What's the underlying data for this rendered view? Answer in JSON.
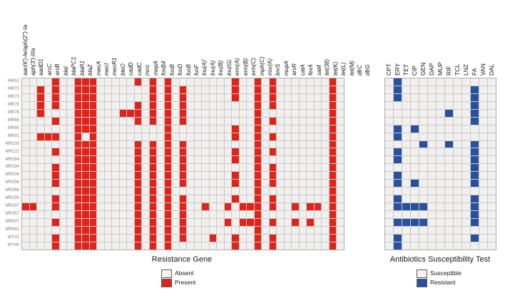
{
  "figure": {
    "gene_axis_title": "Resistance Gene",
    "abx_axis_title": "Antibiotics Susceptibility Test",
    "gene_legend": {
      "absent_label": "Absent",
      "present_label": "Present"
    },
    "abx_legend": {
      "susceptible_label": "Susceptible",
      "resistant_label": "Resistant"
    }
  },
  "chart_data": {
    "type": "heatmap",
    "title": "",
    "legend_position": "bottom",
    "grid": "on",
    "colors": {
      "present": "#e2231a",
      "resistant": "#27519f",
      "absent": "#f1f0ee",
      "gridline": "#c9c9c9"
    },
    "strains": [
      "MR53",
      "MR70",
      "MR73",
      "MR76",
      "MR78",
      "MR88",
      "MR90",
      "MR91",
      "MR109",
      "MR122",
      "MR164",
      "MR194",
      "MR206",
      "MR256",
      "MR286",
      "MR290",
      "MR297",
      "MR357",
      "MR507",
      "MR542",
      "WY22",
      "WY48"
    ],
    "resistance_genes": [
      "aac(6')-Ie/aph(2'')-Ia",
      "aph(3')-IIIa",
      "aadD1",
      "arsC",
      "arsB",
      "blaI",
      "blaPC1",
      "blaR1",
      "blaZ",
      "mecA",
      "mecI",
      "mecR1",
      "bleO",
      "cadD",
      "cadC",
      "mco",
      "mepA",
      "fosB4",
      "fosB",
      "fosD",
      "fusB",
      "fusF",
      "lnu(A)'",
      "lnu(A)",
      "lnu(B)",
      "lnu(G)",
      "erm(A)",
      "erm(B)",
      "erm(C)",
      "mph(C)",
      "msr(A)",
      "lmrS",
      "mupA",
      "arsR",
      "catA",
      "fexA",
      "sat4",
      "tet(38)",
      "tet(K)",
      "tet(L)",
      "tet(M)",
      "dfrC",
      "dfrG"
    ],
    "antibiotics": [
      "CPT",
      "ERY",
      "TET",
      "CIP",
      "GEN",
      "DAP",
      "MUP",
      "RIF",
      "TCL",
      "LNZ",
      "FA",
      "VAN",
      "DAL"
    ],
    "gene_present_cols_1based": [
      [
        5,
        8,
        9,
        10,
        16,
        18,
        20,
        29,
        32,
        34,
        42
      ],
      [
        3,
        5,
        8,
        9,
        10,
        18,
        20,
        22,
        29,
        32,
        34,
        42
      ],
      [
        3,
        5,
        8,
        9,
        10,
        18,
        20,
        22,
        29,
        32,
        34,
        42
      ],
      [
        3,
        5,
        8,
        9,
        10,
        16,
        18,
        20,
        22,
        32,
        34,
        42
      ],
      [
        3,
        8,
        9,
        10,
        14,
        15,
        16,
        18,
        20,
        22,
        32,
        42
      ],
      [
        5,
        8,
        9,
        10,
        16,
        18,
        20,
        22,
        32,
        34,
        42
      ],
      [
        8,
        9,
        10,
        20,
        29,
        32,
        42
      ],
      [
        3,
        4,
        5,
        8,
        10,
        20,
        29,
        32,
        34,
        42
      ],
      [
        8,
        9,
        10,
        16,
        18,
        20,
        22,
        32,
        42
      ],
      [
        5,
        8,
        9,
        10,
        16,
        18,
        20,
        22,
        29,
        32,
        34,
        42
      ],
      [
        8,
        9,
        10,
        16,
        18,
        20,
        22,
        29,
        32,
        42
      ],
      [
        5,
        8,
        9,
        10,
        16,
        18,
        20,
        22,
        32,
        34,
        42
      ],
      [
        5,
        8,
        9,
        10,
        16,
        18,
        20,
        22,
        29,
        32,
        34,
        42
      ],
      [
        5,
        8,
        9,
        10,
        16,
        18,
        20,
        22,
        29,
        32,
        34,
        42
      ],
      [
        8,
        9,
        10,
        16,
        18,
        20,
        32,
        42
      ],
      [
        5,
        8,
        9,
        10,
        16,
        18,
        20,
        22,
        29,
        32,
        34,
        42
      ],
      [
        1,
        2,
        5,
        8,
        9,
        10,
        16,
        18,
        20,
        22,
        25,
        28,
        30,
        31,
        32,
        34,
        37,
        39,
        40,
        42
      ],
      [
        8,
        9,
        10,
        16,
        18,
        20,
        22,
        32,
        42
      ],
      [
        5,
        8,
        9,
        10,
        16,
        18,
        20,
        22,
        28,
        30,
        31,
        32,
        34,
        37,
        39,
        42
      ],
      [
        8,
        9,
        10,
        16,
        18,
        20,
        22,
        32,
        42
      ],
      [
        5,
        8,
        9,
        10,
        16,
        18,
        20,
        22,
        26,
        29,
        32,
        34,
        42
      ],
      [
        5,
        8,
        9,
        10,
        16,
        18,
        20,
        29,
        32,
        34,
        42
      ]
    ],
    "abx_resistant_cols_1based": [
      [
        2
      ],
      [
        2,
        11
      ],
      [
        2,
        11
      ],
      [
        11
      ],
      [
        8,
        11
      ],
      [
        11
      ],
      [
        2,
        4
      ],
      [
        2
      ],
      [
        5,
        8,
        11
      ],
      [
        2,
        11
      ],
      [
        2,
        11
      ],
      [
        11
      ],
      [
        2,
        11
      ],
      [
        2,
        4,
        11
      ],
      [],
      [
        2,
        11
      ],
      [
        2,
        3,
        4,
        5,
        11
      ],
      [
        11
      ],
      [
        2,
        3,
        4,
        5,
        11
      ],
      [],
      [
        2,
        11
      ],
      [
        2
      ]
    ]
  }
}
